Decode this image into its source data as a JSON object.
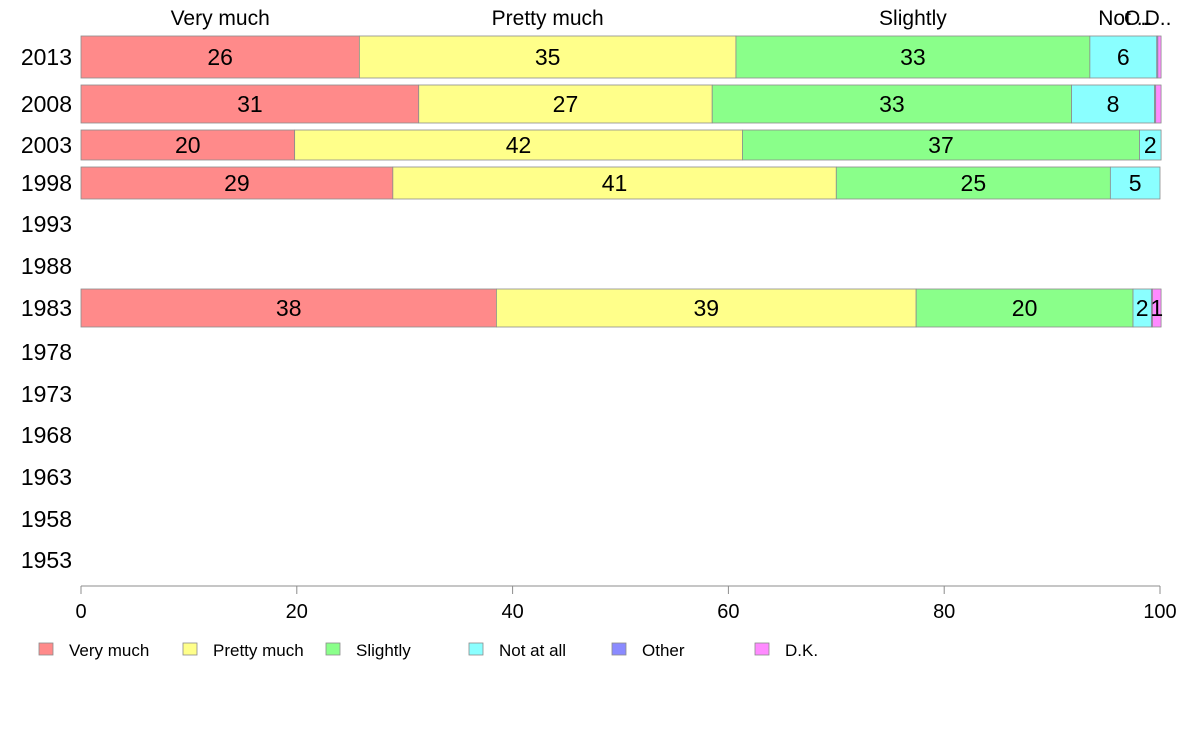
{
  "chart_data": {
    "type": "bar",
    "orientation": "horizontal",
    "stacked": true,
    "title": "",
    "xlabel": "",
    "ylabel": "",
    "xlim": [
      0,
      100
    ],
    "x_ticks": [
      0,
      20,
      40,
      60,
      80,
      100
    ],
    "grid": false,
    "legend_position": "bottom",
    "categories": [
      "2013",
      "2008",
      "2003",
      "1998",
      "1993",
      "1988",
      "1983",
      "1978",
      "1973",
      "1968",
      "1963",
      "1958",
      "1953"
    ],
    "top_labels": [
      "Very much",
      "Pretty much",
      "Slightly",
      "Not ..",
      "O..",
      "D.."
    ],
    "series": [
      {
        "name": "Very much",
        "color": "#ff8a8a",
        "values": [
          25.8,
          31.3,
          19.8,
          28.9,
          null,
          null,
          38.5,
          null,
          null,
          null,
          null,
          null,
          null
        ]
      },
      {
        "name": "Pretty much",
        "color": "#ffff8a",
        "values": [
          34.9,
          27.2,
          41.5,
          41.1,
          null,
          null,
          38.9,
          null,
          null,
          null,
          null,
          null,
          null
        ]
      },
      {
        "name": "Slightly",
        "color": "#8aff8a",
        "values": [
          32.8,
          33.3,
          36.8,
          25.4,
          null,
          null,
          20.1,
          null,
          null,
          null,
          null,
          null,
          null
        ]
      },
      {
        "name": "Not at all",
        "color": "#8affff",
        "values": [
          6.2,
          7.7,
          2.0,
          4.6,
          null,
          null,
          1.7,
          null,
          null,
          null,
          null,
          null,
          null
        ]
      },
      {
        "name": "Other",
        "color": "#8a8aff",
        "values": [
          0.1,
          0.1,
          0.0,
          0.0,
          null,
          null,
          0.1,
          null,
          null,
          null,
          null,
          null,
          null
        ]
      },
      {
        "name": "D.K.",
        "color": "#ff8aff",
        "values": [
          0.3,
          0.5,
          0.0,
          0.0,
          null,
          null,
          0.8,
          null,
          null,
          null,
          null,
          null,
          null
        ]
      }
    ],
    "data_labels": [
      [
        "26",
        "31",
        "20",
        "29",
        null,
        null,
        "38",
        null,
        null,
        null,
        null,
        null,
        null
      ],
      [
        "35",
        "27",
        "42",
        "41",
        null,
        null,
        "39",
        null,
        null,
        null,
        null,
        null,
        null
      ],
      [
        "33",
        "33",
        "37",
        "25",
        null,
        null,
        "20",
        null,
        null,
        null,
        null,
        null,
        null
      ],
      [
        "6",
        "8",
        "2",
        "5",
        null,
        null,
        "2",
        null,
        null,
        null,
        null,
        null,
        null
      ],
      [
        null,
        null,
        null,
        null,
        null,
        null,
        null,
        null,
        null,
        null,
        null,
        null,
        null
      ],
      [
        null,
        null,
        null,
        null,
        null,
        null,
        "1",
        null,
        null,
        null,
        null,
        null,
        null
      ]
    ]
  }
}
